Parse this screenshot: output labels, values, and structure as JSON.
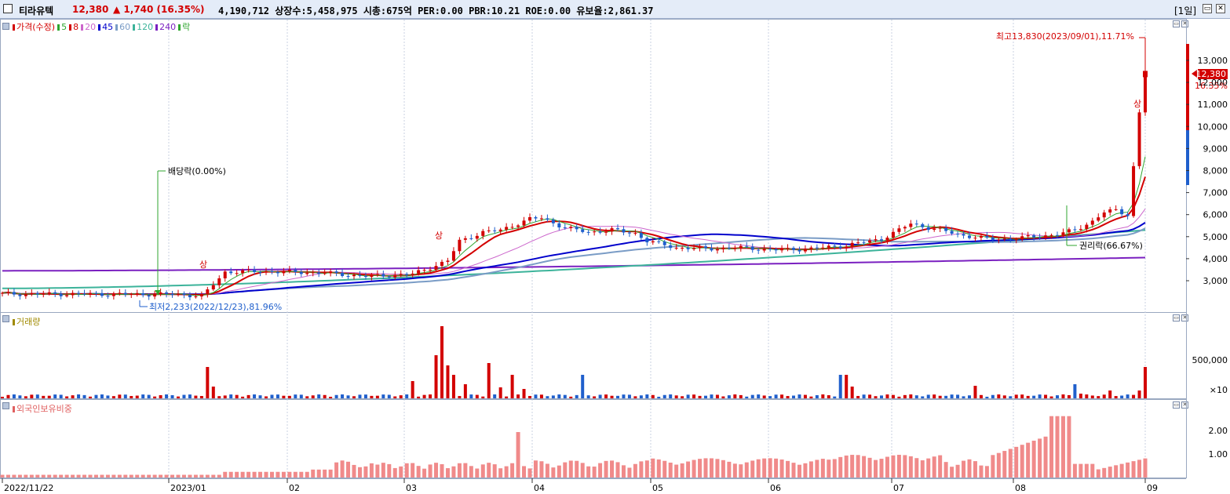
{
  "header": {
    "stock_name": "티라유텍",
    "price": "12,380",
    "change": "▲ 1,740 (16.35%)",
    "stats": "4,190,712  상장수:5,458,975 시총:675억  PER:0.00 PBR:10.21 ROE:0.00 유보율:2,861.37",
    "period": "[1일]"
  },
  "price_panel": {
    "legend": [
      {
        "label": "가격(수정)",
        "color": "#d30000"
      },
      {
        "label": "5",
        "color": "#2fa62f"
      },
      {
        "label": "8",
        "color": "#d30000"
      },
      {
        "label": "20",
        "color": "#cc66cc"
      },
      {
        "label": "45",
        "color": "#0000cc"
      },
      {
        "label": "60",
        "color": "#7a9cc6"
      },
      {
        "label": "120",
        "color": "#3cb39a"
      },
      {
        "label": "240",
        "color": "#7a20c0"
      },
      {
        "label": "락",
        "color": "#2fa62f"
      }
    ],
    "annotation_high": "최고13,830(2023/09/01),11.71%",
    "annotation_low": "최저2,233(2022/12/23),81.96%",
    "annotation_dividend": "배당락(0.00%)",
    "annotation_rights": "권리락(66.67%)",
    "upper_limit_label": "상",
    "current_price_label": "12,380",
    "current_change_label": "16.35%",
    "y_ticks": [
      "13,000",
      "12,000",
      "11,000",
      "10,000",
      "9,000",
      "8,000",
      "7,000",
      "6,000",
      "5,000",
      "4,000",
      "3,000"
    ]
  },
  "volume_panel": {
    "legend": "거래량",
    "legend_color": "#a08a00",
    "y_ticks": [
      "500,000",
      "×10"
    ]
  },
  "foreign_panel": {
    "legend": "외국인보유비중",
    "legend_color": "#e06060",
    "y_ticks": [
      "2.00",
      "1.00"
    ]
  },
  "x_axis": {
    "ticks": [
      "2022/11/22",
      "2023/01",
      "02",
      "03",
      "04",
      "05",
      "06",
      "07",
      "08",
      "09"
    ]
  },
  "colors": {
    "up": "#d30000",
    "down": "#1f5fcc",
    "foreign_bar": "#f08a8a",
    "header_bg": "#e4ecf8"
  }
}
